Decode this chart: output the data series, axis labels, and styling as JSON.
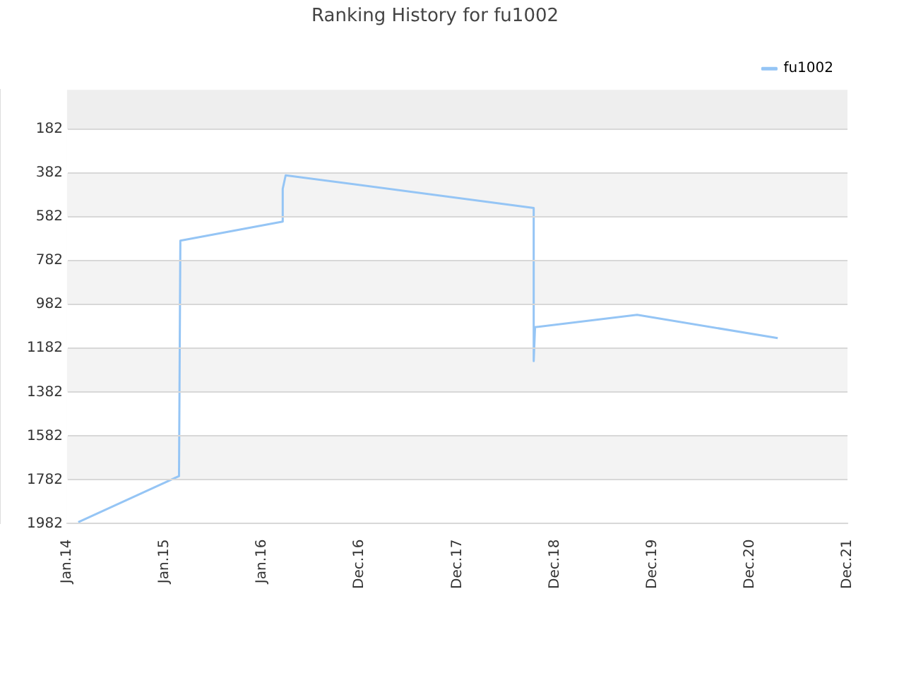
{
  "chart_data": {
    "type": "line",
    "title": "Ranking History for fu1002",
    "x": [
      "2014-02-12",
      "2015-02-24",
      "2015-03-01",
      "2016-03-18",
      "2016-03-18",
      "2016-03-29",
      "2018-10-13",
      "2018-10-13",
      "2018-10-18",
      "2019-11-04",
      "2021-04-13"
    ],
    "series": [
      {
        "name": "fu1002",
        "color": "#95c5f5",
        "values": [
          1975,
          1765,
          690,
          603,
          454,
          392,
          541,
          1240,
          1085,
          1029,
          1135
        ]
      }
    ],
    "xlim": [
      "2014-01-01",
      "2021-12-30"
    ],
    "xticks": [
      {
        "value": "2014-01-01",
        "label": "Jan.14"
      },
      {
        "value": "2015-01-01",
        "label": "Jan.15"
      },
      {
        "value": "2016-01-01",
        "label": "Jan.16"
      },
      {
        "value": "2016-12-31",
        "label": "Dec.16"
      },
      {
        "value": "2017-12-31",
        "label": "Dec.17"
      },
      {
        "value": "2018-12-31",
        "label": "Dec.18"
      },
      {
        "value": "2019-12-31",
        "label": "Dec.19"
      },
      {
        "value": "2020-12-30",
        "label": "Dec.20"
      },
      {
        "value": "2021-12-30",
        "label": "Dec.21"
      }
    ],
    "ylim": [
      1982,
      2
    ],
    "yticks": [
      182,
      382,
      582,
      782,
      982,
      1182,
      1382,
      1582,
      1782,
      1982
    ],
    "grid": "y",
    "legend": "top right",
    "marker": "none",
    "line_style": "solid"
  }
}
